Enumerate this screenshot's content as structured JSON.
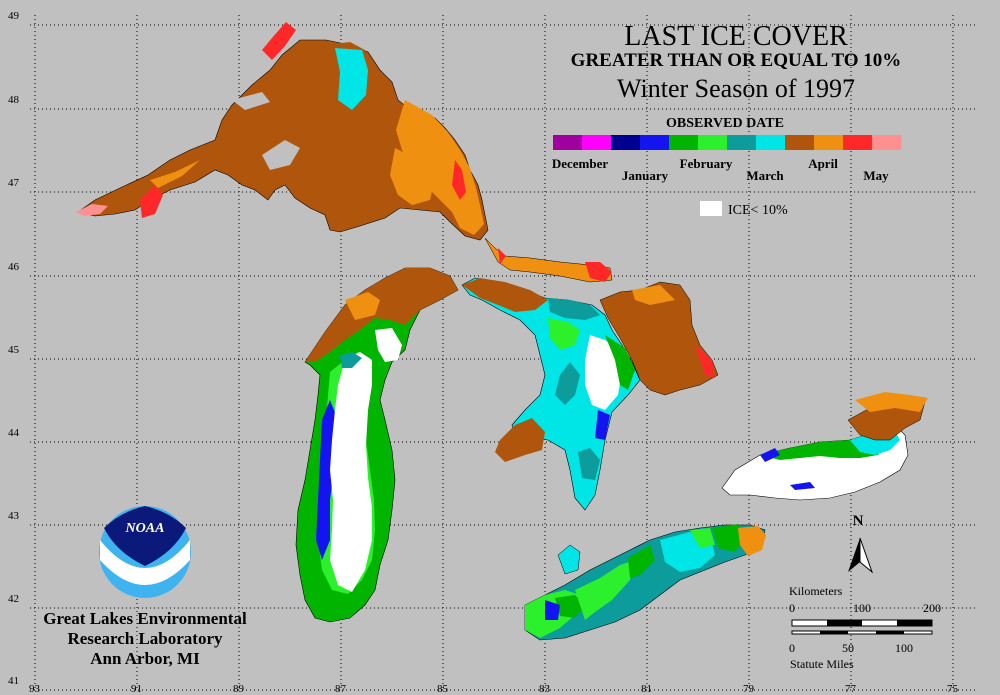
{
  "title": {
    "line1": "LAST ICE COVER",
    "line2": "GREATER THAN OR EQUAL TO 10%",
    "line3": "Winter Season of 1997"
  },
  "legend": {
    "heading": "OBSERVED DATE",
    "months": [
      "December",
      "January",
      "February",
      "March",
      "April",
      "May"
    ],
    "colors": [
      "#a000a0",
      "#ff00ff",
      "#000090",
      "#1414f0",
      "#00b400",
      "#2cf02c",
      "#0c9c9c",
      "#00e6e6",
      "#b0560c",
      "#f09010",
      "#ff2828",
      "#ff9090"
    ],
    "ice_less_label": "ICE< 10%"
  },
  "lat_labels": [
    "49",
    "48",
    "47",
    "46",
    "45",
    "44",
    "43",
    "42",
    "41"
  ],
  "lon_labels": [
    "93",
    "91",
    "89",
    "87",
    "85",
    "83",
    "81",
    "79",
    "77",
    "75"
  ],
  "agency": {
    "logo_text": "NOAA",
    "line1": "Great Lakes Environmental",
    "line2": "Research Laboratory",
    "line3": "Ann Arbor, MI"
  },
  "north_label": "N",
  "scale": {
    "km_label": "Kilometers",
    "km_ticks": [
      "0",
      "100",
      "200"
    ],
    "mi_ticks": [
      "0",
      "50",
      "100"
    ],
    "mi_label": "Statute Miles"
  },
  "colors": {
    "background": "#c0c0c0",
    "land_outline": "#000000",
    "white_ice": "#ffffff"
  }
}
